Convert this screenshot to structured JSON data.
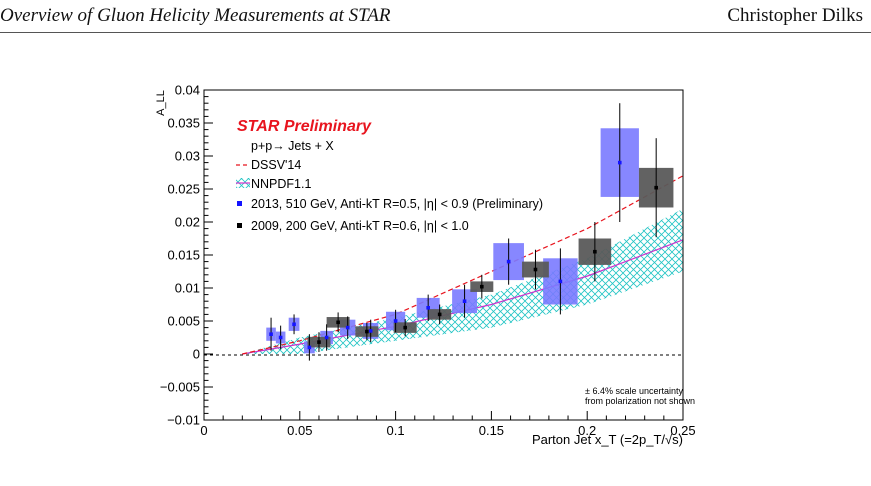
{
  "header": {
    "title": "Overview of Gluon Helicity Measurements at STAR",
    "author": "Christopher Dilks"
  },
  "colors": {
    "star_red": "#e8141e",
    "data2013": "#1414ff",
    "box2013": "#7a7aff",
    "data2009": "#000000",
    "box2009": "#5a5a5a",
    "dssv": "#e8141e",
    "nnpdf_hatch": "#22c4c4",
    "nnpdf_line": "#cc33cc"
  },
  "chart_data": {
    "type": "scatter",
    "ylabel": "A_LL",
    "xlabel": "Parton Jet x_T (=2p_T/√s)",
    "xlim": [
      0,
      0.25
    ],
    "ylim": [
      -0.01,
      0.04
    ],
    "x_ticks": [
      "0",
      "0.05",
      "0.1",
      "0.15",
      "0.2",
      "0.25"
    ],
    "y_ticks": [
      "−0.01",
      "−0.005",
      "0",
      "0.005",
      "0.01",
      "0.015",
      "0.02",
      "0.025",
      "0.03",
      "0.035",
      "0.04"
    ],
    "grid": false,
    "legend_placement": "top-left",
    "annotations": {
      "star": "STAR Preliminary",
      "reaction": "p+p→ Jets + X",
      "scale_note_1": "± 6.4% scale uncertainty",
      "scale_note_2": "from polarization not shown"
    },
    "legend": [
      {
        "key": "dssv",
        "label": "DSSV'14"
      },
      {
        "key": "nnpdf",
        "label": "NNPDF1.1"
      },
      {
        "key": "d2013",
        "label": "2013, 510 GeV, Anti-kT R=0.5, |η| < 0.9 (Preliminary)"
      },
      {
        "key": "d2009",
        "label": "2009, 200 GeV, Anti-kT R=0.6, |η| < 1.0"
      }
    ],
    "series": [
      {
        "name": "2013, 510 GeV, Anti-kT R=0.5, |η| < 0.9 (Preliminary)",
        "points": [
          {
            "x": 0.035,
            "y": 0.003,
            "err": 0.0025,
            "sx": 0.0025,
            "sy": 0.001
          },
          {
            "x": 0.04,
            "y": 0.0025,
            "err": 0.0018,
            "sx": 0.0025,
            "sy": 0.0009
          },
          {
            "x": 0.047,
            "y": 0.0045,
            "err": 0.0015,
            "sx": 0.0028,
            "sy": 0.001
          },
          {
            "x": 0.055,
            "y": 0.001,
            "err": 0.002,
            "sx": 0.0028,
            "sy": 0.0009
          },
          {
            "x": 0.064,
            "y": 0.0025,
            "err": 0.002,
            "sx": 0.0033,
            "sy": 0.001
          },
          {
            "x": 0.075,
            "y": 0.004,
            "err": 0.0017,
            "sx": 0.004,
            "sy": 0.0012
          },
          {
            "x": 0.087,
            "y": 0.0035,
            "err": 0.0017,
            "sx": 0.004,
            "sy": 0.0012
          },
          {
            "x": 0.1,
            "y": 0.005,
            "err": 0.0017,
            "sx": 0.005,
            "sy": 0.0014
          },
          {
            "x": 0.117,
            "y": 0.007,
            "err": 0.002,
            "sx": 0.006,
            "sy": 0.0015
          },
          {
            "x": 0.136,
            "y": 0.008,
            "err": 0.0025,
            "sx": 0.0065,
            "sy": 0.0018
          },
          {
            "x": 0.159,
            "y": 0.014,
            "err": 0.0035,
            "sx": 0.008,
            "sy": 0.0028
          },
          {
            "x": 0.186,
            "y": 0.011,
            "err": 0.005,
            "sx": 0.009,
            "sy": 0.0035
          },
          {
            "x": 0.217,
            "y": 0.029,
            "err": 0.009,
            "sx": 0.01,
            "sy": 0.0052
          }
        ]
      },
      {
        "name": "2009, 200 GeV, Anti-kT R=0.6, |η| < 1.0",
        "points": [
          {
            "x": 0.06,
            "y": 0.0018,
            "err": 0.0015,
            "sx": 0.006,
            "sy": 0.0008
          },
          {
            "x": 0.07,
            "y": 0.0048,
            "err": 0.0015,
            "sx": 0.006,
            "sy": 0.0008
          },
          {
            "x": 0.085,
            "y": 0.0034,
            "err": 0.0013,
            "sx": 0.006,
            "sy": 0.0008
          },
          {
            "x": 0.105,
            "y": 0.004,
            "err": 0.0013,
            "sx": 0.006,
            "sy": 0.0008
          },
          {
            "x": 0.123,
            "y": 0.006,
            "err": 0.0015,
            "sx": 0.006,
            "sy": 0.0008
          },
          {
            "x": 0.145,
            "y": 0.0102,
            "err": 0.0018,
            "sx": 0.006,
            "sy": 0.0008
          },
          {
            "x": 0.173,
            "y": 0.0128,
            "err": 0.003,
            "sx": 0.007,
            "sy": 0.0012
          },
          {
            "x": 0.204,
            "y": 0.0155,
            "err": 0.0045,
            "sx": 0.0085,
            "sy": 0.002
          },
          {
            "x": 0.236,
            "y": 0.0252,
            "err": 0.0075,
            "sx": 0.009,
            "sy": 0.003
          }
        ]
      }
    ],
    "dssv_curve": {
      "x": [
        0.02,
        0.05,
        0.1,
        0.15,
        0.2,
        0.25
      ],
      "y": [
        0.0,
        0.002,
        0.006,
        0.0125,
        0.019,
        0.027
      ]
    },
    "nnpdf_band": {
      "x": [
        0.02,
        0.05,
        0.1,
        0.15,
        0.2,
        0.25
      ],
      "y_low": [
        0.0,
        0.0,
        0.002,
        0.004,
        0.0075,
        0.0125
      ],
      "y_high": [
        0.0,
        0.0025,
        0.0055,
        0.009,
        0.0145,
        0.022
      ]
    },
    "nnpdf_central": {
      "x": [
        0.02,
        0.05,
        0.1,
        0.15,
        0.2,
        0.25
      ],
      "y": [
        0.0,
        0.0015,
        0.0042,
        0.0075,
        0.0118,
        0.0173
      ]
    }
  }
}
